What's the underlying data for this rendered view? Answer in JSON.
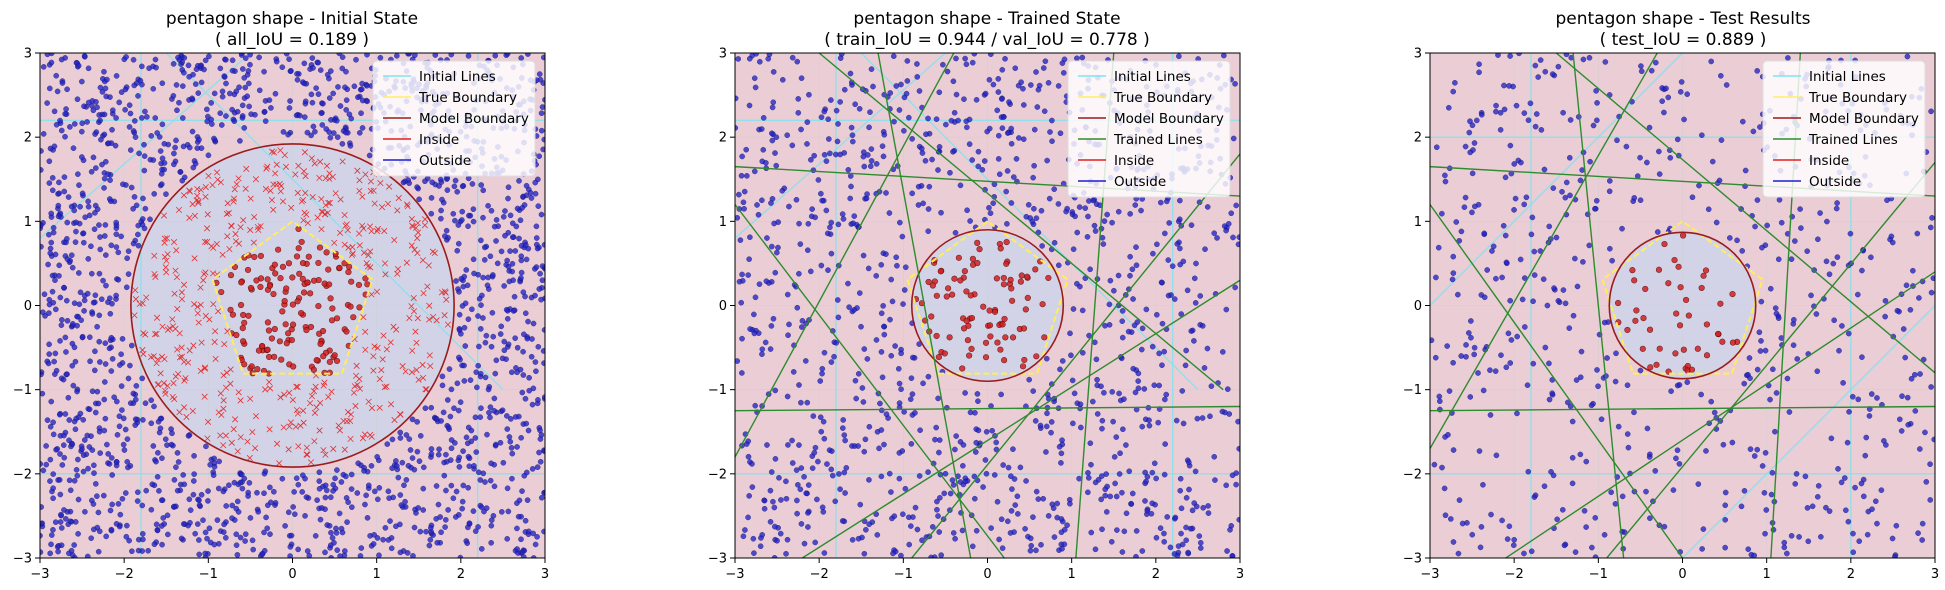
{
  "chart_data": [
    {
      "type": "scatter",
      "title": "pentagon shape - Initial State",
      "subtitle": "( all_IoU = 0.189 )",
      "xlim": [
        -3,
        3
      ],
      "ylim": [
        -3,
        3
      ],
      "xticks": [
        -3,
        -2,
        -1,
        0,
        1,
        2,
        3
      ],
      "yticks": [
        -3,
        -2,
        -1,
        0,
        1,
        2,
        3
      ],
      "xtick_labels": [
        "−3",
        "−2",
        "−1",
        "0",
        "1",
        "2",
        "3"
      ],
      "ytick_labels": [
        "−3",
        "−2",
        "−1",
        "0",
        "1",
        "2",
        "3"
      ],
      "grid": true,
      "legend_position": "top-right",
      "legend": [
        {
          "label": "Initial Lines",
          "color": "#7fe3ee"
        },
        {
          "label": "True Boundary",
          "color": "#ffee66"
        },
        {
          "label": "Model Boundary",
          "color": "#9b1c1c"
        },
        {
          "label": "Inside",
          "color": "#e02020"
        },
        {
          "label": "Outside",
          "color": "#1e1ed0"
        }
      ],
      "model_boundary_radius": 1.92,
      "initial_lines": [
        {
          "x1": -3,
          "y1": -2,
          "x2": 3,
          "y2": -2
        },
        {
          "x1": 2.2,
          "y1": -3,
          "x2": 2.2,
          "y2": 3
        },
        {
          "x1": -1.8,
          "y1": -3,
          "x2": -1.8,
          "y2": 3
        },
        {
          "x1": -3,
          "y1": 2.2,
          "x2": 3,
          "y2": 2.2
        },
        {
          "x1": -1.5,
          "y1": 3,
          "x2": 2.5,
          "y2": -1
        },
        {
          "x1": -3,
          "y1": 0.8,
          "x2": -0.5,
          "y2": 3
        }
      ],
      "trained_lines": [],
      "outside_count": 1700,
      "inside_x_count": 430,
      "inside_dot_count": 150,
      "seed": 11
    },
    {
      "type": "scatter",
      "title": "pentagon shape - Trained State",
      "subtitle": "( train_IoU = 0.944 / val_IoU = 0.778 )",
      "xlim": [
        -3,
        3
      ],
      "ylim": [
        -3,
        3
      ],
      "xticks": [
        -3,
        -2,
        -1,
        0,
        1,
        2,
        3
      ],
      "yticks": [
        -3,
        -2,
        -1,
        0,
        1,
        2,
        3
      ],
      "xtick_labels": [
        "−3",
        "−2",
        "−1",
        "0",
        "1",
        "2",
        "3"
      ],
      "ytick_labels": [
        "−3",
        "−2",
        "−1",
        "0",
        "1",
        "2",
        "3"
      ],
      "grid": true,
      "legend_position": "top-right",
      "legend": [
        {
          "label": "Initial Lines",
          "color": "#7fe3ee"
        },
        {
          "label": "True Boundary",
          "color": "#ffee66"
        },
        {
          "label": "Model Boundary",
          "color": "#9b1c1c"
        },
        {
          "label": "Trained Lines",
          "color": "#2e8b2e"
        },
        {
          "label": "Inside",
          "color": "#e02020"
        },
        {
          "label": "Outside",
          "color": "#1e1ed0"
        }
      ],
      "model_boundary_radius": 0.9,
      "initial_lines": [
        {
          "x1": -3,
          "y1": -2,
          "x2": 3,
          "y2": -2
        },
        {
          "x1": 2.2,
          "y1": -3,
          "x2": 2.2,
          "y2": 3
        },
        {
          "x1": -1.8,
          "y1": -3,
          "x2": -1.8,
          "y2": 3
        },
        {
          "x1": -3,
          "y1": 2.2,
          "x2": 3,
          "y2": 2.2
        },
        {
          "x1": -1.5,
          "y1": 3,
          "x2": 2.5,
          "y2": -1
        },
        {
          "x1": -3,
          "y1": 0.8,
          "x2": -0.5,
          "y2": 3
        }
      ],
      "trained_lines": [
        {
          "x1": -3,
          "y1": 1.65,
          "x2": 3,
          "y2": 1.3
        },
        {
          "x1": -3,
          "y1": -1.25,
          "x2": 3,
          "y2": -1.2
        },
        {
          "x1": -2.0,
          "y1": 3,
          "x2": 2.8,
          "y2": -1.0
        },
        {
          "x1": -3,
          "y1": 1.2,
          "x2": 0.2,
          "y2": -3
        },
        {
          "x1": -1.3,
          "y1": 3,
          "x2": -0.2,
          "y2": -3
        },
        {
          "x1": 1.5,
          "y1": 3,
          "x2": 1.05,
          "y2": -3
        },
        {
          "x1": -2.2,
          "y1": -3,
          "x2": 3,
          "y2": 0.3
        },
        {
          "x1": -3,
          "y1": -1.8,
          "x2": -0.4,
          "y2": 3
        },
        {
          "x1": -0.9,
          "y1": -3,
          "x2": 3,
          "y2": 1.8
        }
      ],
      "outside_count": 1150,
      "inside_x_count": 0,
      "inside_dot_count": 90,
      "seed": 23
    },
    {
      "type": "scatter",
      "title": "pentagon shape - Test Results",
      "subtitle": "( test_IoU = 0.889 )",
      "xlim": [
        -3,
        3
      ],
      "ylim": [
        -3,
        3
      ],
      "xticks": [
        -3,
        -2,
        -1,
        0,
        1,
        2,
        3
      ],
      "yticks": [
        -3,
        -2,
        -1,
        0,
        1,
        2,
        3
      ],
      "xtick_labels": [
        "−3",
        "−2",
        "−1",
        "0",
        "1",
        "2",
        "3"
      ],
      "ytick_labels": [
        "−3",
        "−2",
        "−1",
        "0",
        "1",
        "2",
        "3"
      ],
      "grid": true,
      "legend_position": "top-right",
      "legend": [
        {
          "label": "Initial Lines",
          "color": "#7fe3ee"
        },
        {
          "label": "True Boundary",
          "color": "#ffee66"
        },
        {
          "label": "Model Boundary",
          "color": "#9b1c1c"
        },
        {
          "label": "Trained Lines",
          "color": "#2e8b2e"
        },
        {
          "label": "Inside",
          "color": "#e02020"
        },
        {
          "label": "Outside",
          "color": "#1e1ed0"
        }
      ],
      "model_boundary_radius": 0.87,
      "initial_lines": [
        {
          "x1": -3,
          "y1": -2,
          "x2": 3,
          "y2": -2
        },
        {
          "x1": 2.0,
          "y1": -3,
          "x2": 2.0,
          "y2": 3
        },
        {
          "x1": -1.8,
          "y1": -3,
          "x2": -1.8,
          "y2": 3
        },
        {
          "x1": -3,
          "y1": 2.0,
          "x2": 3,
          "y2": 2.0
        },
        {
          "x1": -3,
          "y1": 0,
          "x2": 0,
          "y2": 3
        },
        {
          "x1": 0,
          "y1": -3,
          "x2": 3,
          "y2": 0
        }
      ],
      "trained_lines": [
        {
          "x1": -3,
          "y1": 1.65,
          "x2": 3,
          "y2": 1.3
        },
        {
          "x1": -3,
          "y1": -1.25,
          "x2": 3,
          "y2": -1.2
        },
        {
          "x1": -1.5,
          "y1": 3,
          "x2": 3,
          "y2": -0.8
        },
        {
          "x1": -3,
          "y1": 1.2,
          "x2": 0.0,
          "y2": -3
        },
        {
          "x1": -1.3,
          "y1": 3,
          "x2": -0.7,
          "y2": -3
        },
        {
          "x1": 1.4,
          "y1": 3,
          "x2": 1.05,
          "y2": -3
        },
        {
          "x1": -2.1,
          "y1": -3,
          "x2": 3,
          "y2": 0.4
        },
        {
          "x1": -3,
          "y1": -1.7,
          "x2": -0.3,
          "y2": 3
        },
        {
          "x1": -0.9,
          "y1": -3,
          "x2": 3,
          "y2": 1.7
        }
      ],
      "outside_count": 620,
      "inside_x_count": 0,
      "inside_dot_count": 45,
      "seed": 37
    }
  ]
}
